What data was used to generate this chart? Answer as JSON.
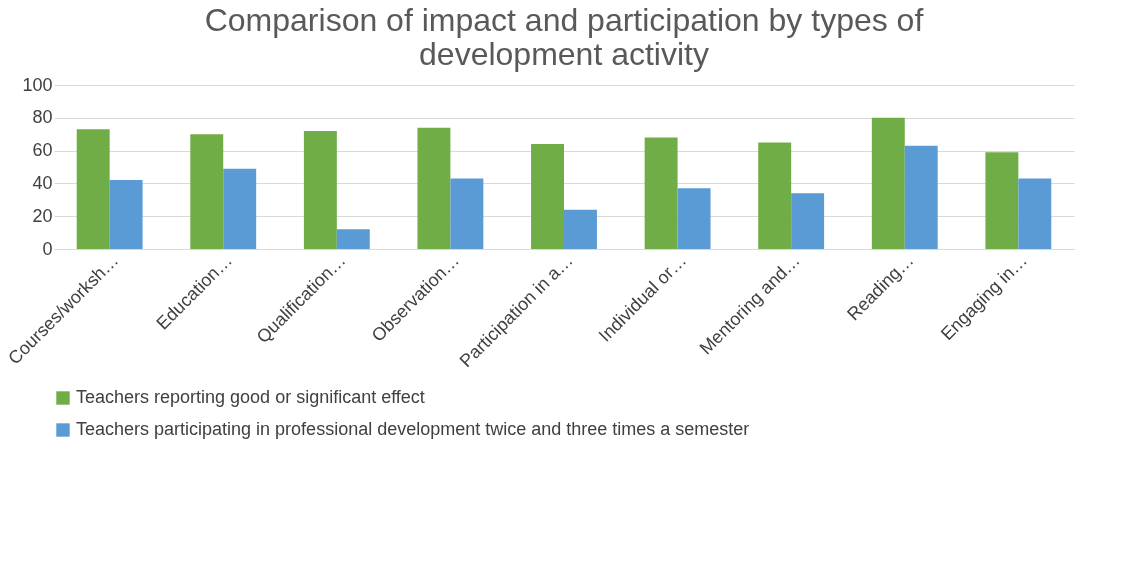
{
  "chart_data": {
    "type": "bar",
    "title": "Comparison of impact and participation by types of development activity",
    "categories": [
      "Courses/worksh…",
      "Education…",
      "Qualification…",
      "Observation…",
      "Participation in a…",
      "Individual or…",
      "Mentoring and…",
      "Reading…",
      "Engaging in…"
    ],
    "series": [
      {
        "name": "Teachers reporting good or significant effect",
        "color": "#70ad47",
        "values": [
          73,
          70,
          72,
          74,
          64,
          68,
          65,
          80,
          59
        ]
      },
      {
        "name": "Teachers participating in professional development twice and three times a semester",
        "color": "#5b9bd5",
        "values": [
          42,
          49,
          12,
          43,
          24,
          37,
          34,
          63,
          43
        ]
      }
    ],
    "ylim": [
      0,
      100
    ],
    "yticks": [
      0,
      20,
      40,
      60,
      80,
      100
    ],
    "grid": "y",
    "legend": "bottom"
  }
}
